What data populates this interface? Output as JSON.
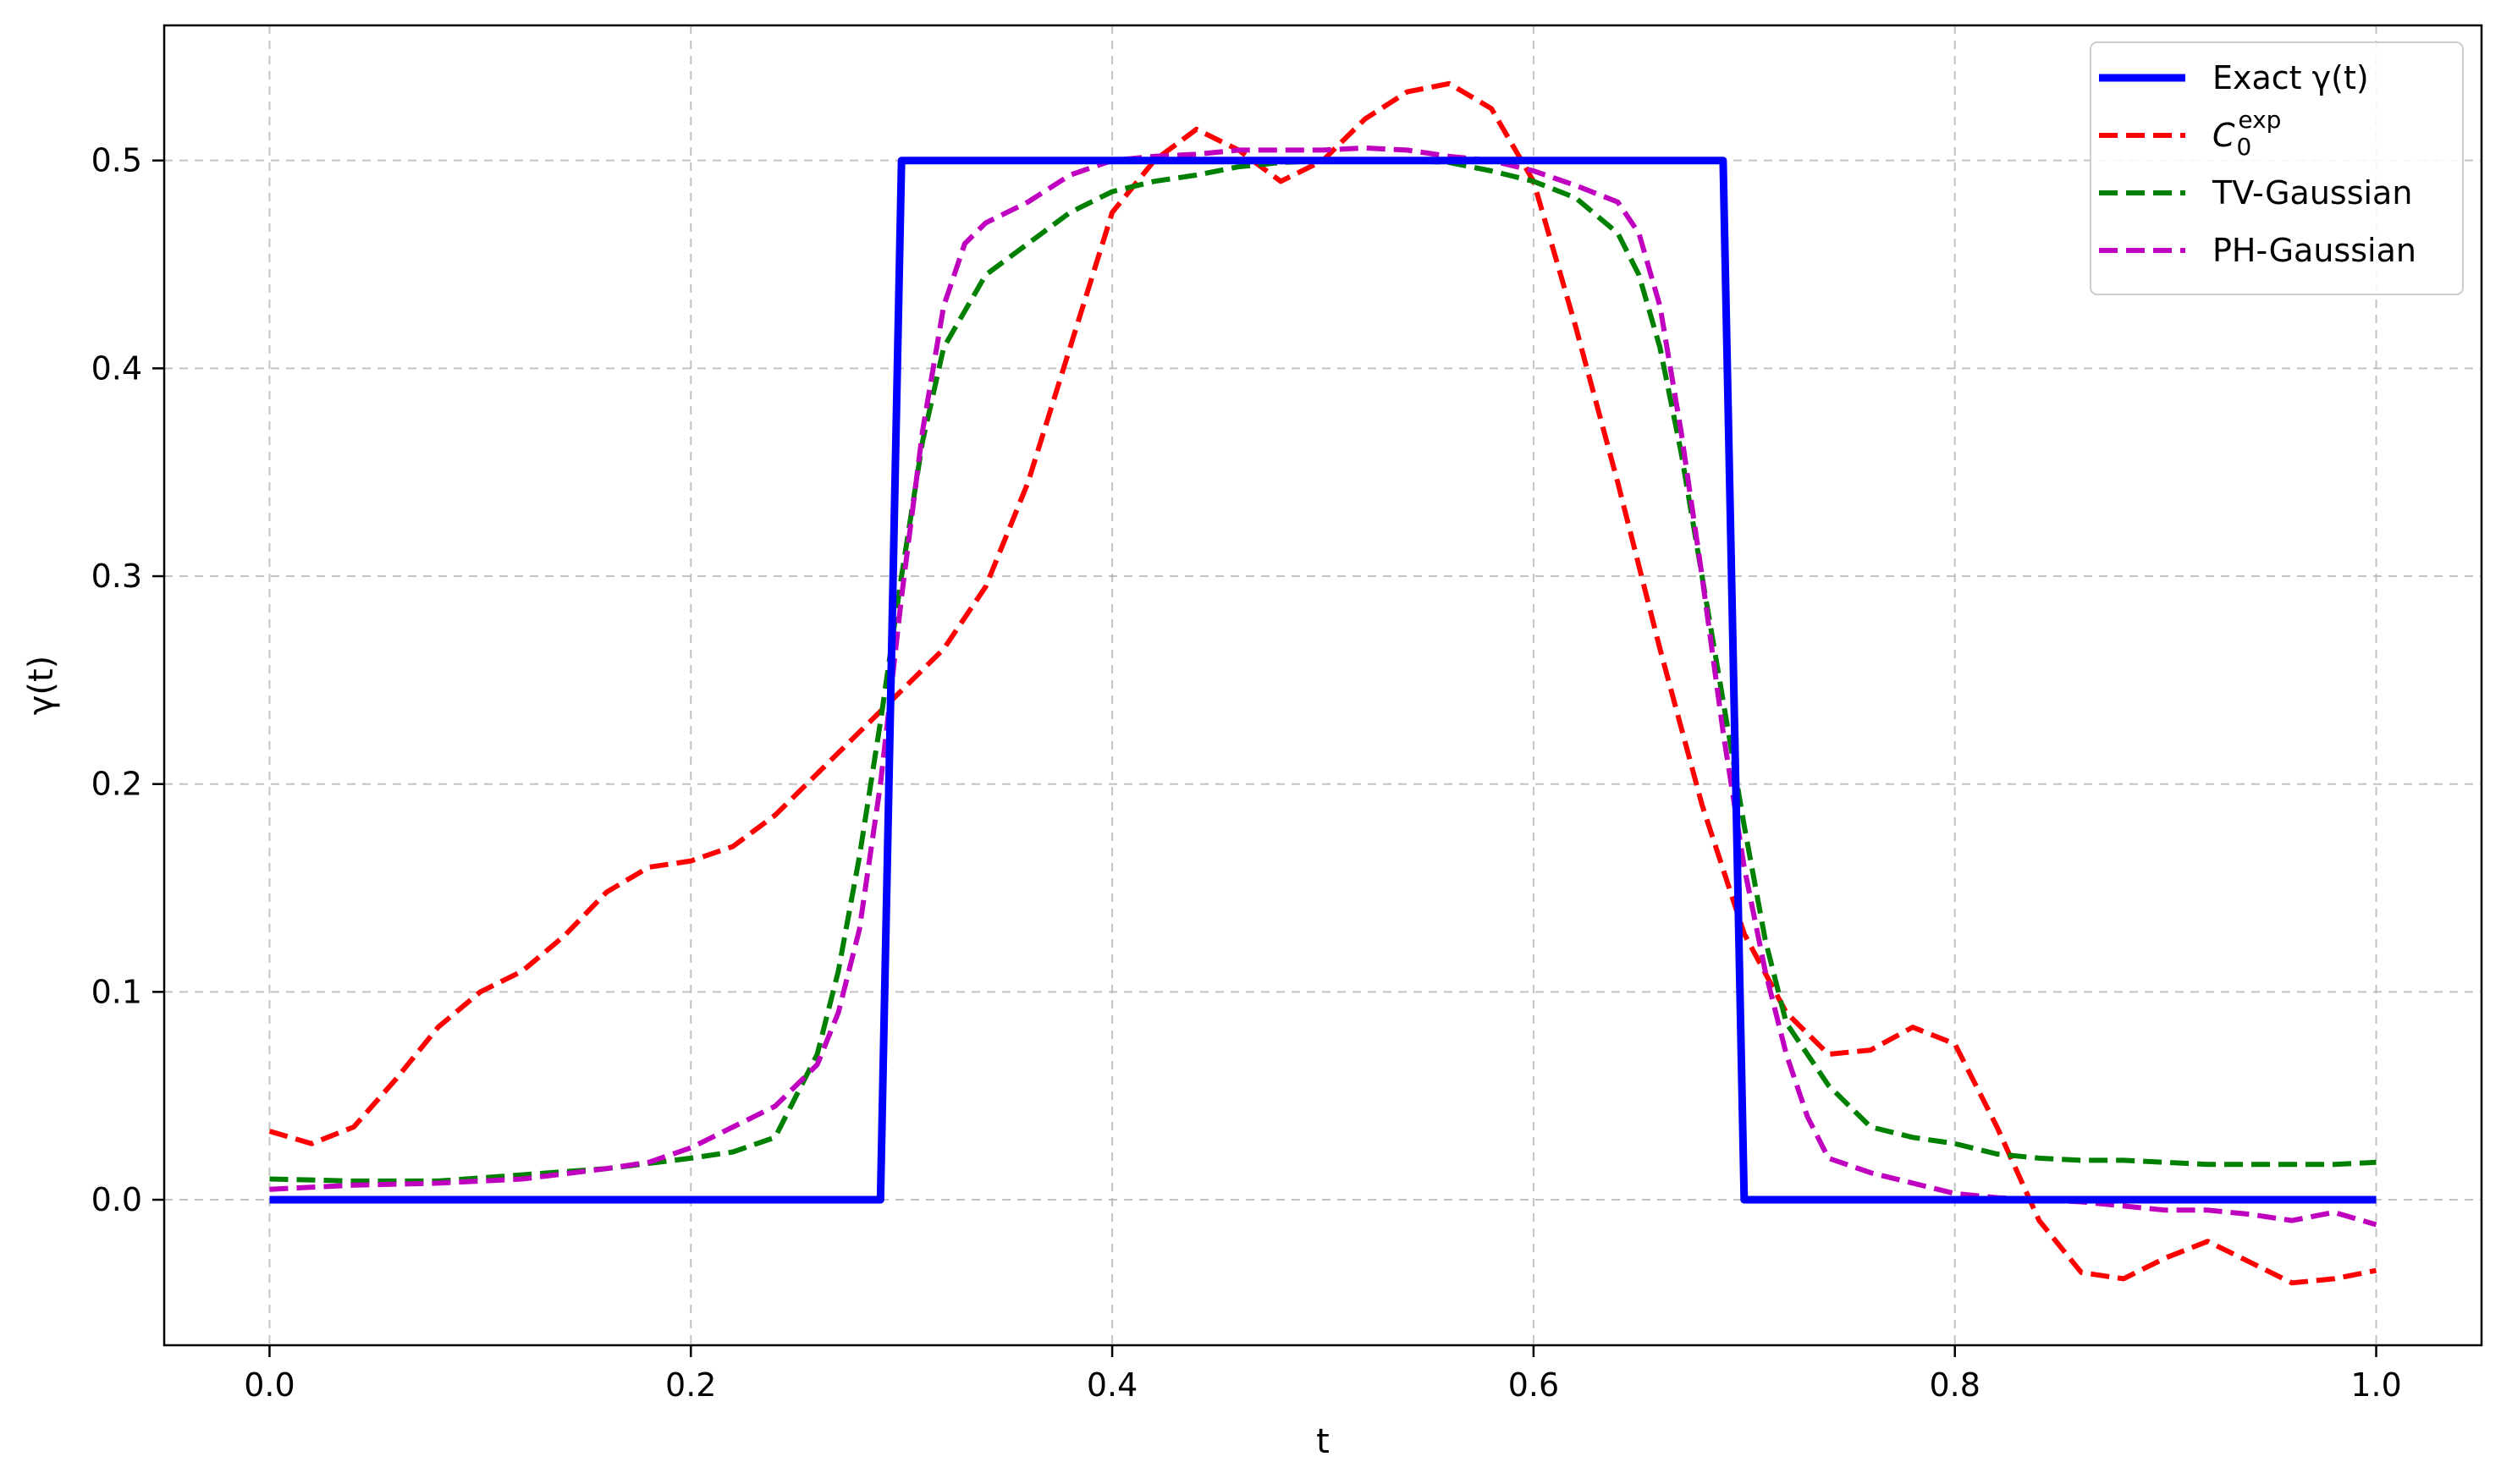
{
  "chart_data": {
    "type": "line",
    "title": "",
    "xlabel": "t",
    "ylabel": "γ(t)",
    "xlim": [
      -0.05,
      1.05
    ],
    "ylim": [
      -0.07,
      0.565
    ],
    "xticks": [
      0.0,
      0.2,
      0.4,
      0.6,
      0.8,
      1.0
    ],
    "xtick_labels": [
      "0.0",
      "0.2",
      "0.4",
      "0.6",
      "0.8",
      "1.0"
    ],
    "yticks": [
      0.0,
      0.1,
      0.2,
      0.3,
      0.4,
      0.5
    ],
    "ytick_labels": [
      "0.0",
      "0.1",
      "0.2",
      "0.3",
      "0.4",
      "0.5"
    ],
    "grid": true,
    "legend_position": "top-right",
    "series": [
      {
        "name": "Exact γ(t)",
        "color": "#0000ff",
        "style": "solid",
        "x": [
          0.0,
          0.29,
          0.3,
          0.69,
          0.7,
          1.0
        ],
        "y": [
          0.0,
          0.0,
          0.5,
          0.5,
          0.0,
          0.0
        ]
      },
      {
        "name": "C0exp",
        "legend_base": "C",
        "legend_sub": "0",
        "legend_sup": "exp",
        "color": "#ff0000",
        "style": "dashed",
        "x": [
          0.0,
          0.02,
          0.04,
          0.06,
          0.08,
          0.1,
          0.12,
          0.14,
          0.16,
          0.18,
          0.2,
          0.22,
          0.24,
          0.26,
          0.28,
          0.3,
          0.32,
          0.34,
          0.36,
          0.38,
          0.4,
          0.42,
          0.44,
          0.46,
          0.48,
          0.5,
          0.52,
          0.54,
          0.56,
          0.58,
          0.6,
          0.62,
          0.64,
          0.66,
          0.68,
          0.7,
          0.72,
          0.74,
          0.76,
          0.78,
          0.8,
          0.82,
          0.84,
          0.86,
          0.88,
          0.9,
          0.92,
          0.94,
          0.96,
          0.98,
          1.0
        ],
        "y": [
          0.033,
          0.027,
          0.035,
          0.058,
          0.083,
          0.1,
          0.11,
          0.127,
          0.148,
          0.16,
          0.163,
          0.17,
          0.185,
          0.205,
          0.225,
          0.245,
          0.265,
          0.295,
          0.345,
          0.41,
          0.475,
          0.5,
          0.515,
          0.505,
          0.49,
          0.5,
          0.52,
          0.533,
          0.537,
          0.525,
          0.49,
          0.42,
          0.345,
          0.265,
          0.19,
          0.128,
          0.09,
          0.07,
          0.072,
          0.083,
          0.075,
          0.035,
          -0.01,
          -0.035,
          -0.038,
          -0.028,
          -0.02,
          -0.03,
          -0.04,
          -0.038,
          -0.034
        ]
      },
      {
        "name": "TV-Gaussian",
        "color": "#008000",
        "style": "dashed",
        "x": [
          0.0,
          0.04,
          0.08,
          0.12,
          0.16,
          0.2,
          0.22,
          0.24,
          0.26,
          0.27,
          0.28,
          0.29,
          0.3,
          0.31,
          0.32,
          0.34,
          0.36,
          0.38,
          0.4,
          0.42,
          0.44,
          0.46,
          0.48,
          0.5,
          0.52,
          0.54,
          0.56,
          0.58,
          0.6,
          0.62,
          0.64,
          0.65,
          0.66,
          0.67,
          0.68,
          0.69,
          0.7,
          0.71,
          0.72,
          0.74,
          0.76,
          0.78,
          0.8,
          0.82,
          0.84,
          0.86,
          0.88,
          0.9,
          0.92,
          0.94,
          0.96,
          0.98,
          1.0
        ],
        "y": [
          0.01,
          0.009,
          0.009,
          0.012,
          0.015,
          0.02,
          0.023,
          0.03,
          0.07,
          0.11,
          0.165,
          0.23,
          0.3,
          0.365,
          0.41,
          0.445,
          0.46,
          0.475,
          0.485,
          0.49,
          0.493,
          0.497,
          0.499,
          0.5,
          0.5,
          0.5,
          0.499,
          0.495,
          0.49,
          0.482,
          0.465,
          0.445,
          0.41,
          0.36,
          0.3,
          0.24,
          0.18,
          0.125,
          0.085,
          0.055,
          0.035,
          0.03,
          0.027,
          0.022,
          0.02,
          0.019,
          0.019,
          0.018,
          0.017,
          0.017,
          0.017,
          0.017,
          0.018
        ]
      },
      {
        "name": "PH-Gaussian",
        "color": "#bf00bf",
        "style": "dashed",
        "x": [
          0.0,
          0.04,
          0.08,
          0.12,
          0.16,
          0.18,
          0.2,
          0.22,
          0.24,
          0.26,
          0.27,
          0.28,
          0.29,
          0.3,
          0.31,
          0.32,
          0.33,
          0.34,
          0.36,
          0.38,
          0.4,
          0.42,
          0.44,
          0.46,
          0.48,
          0.5,
          0.52,
          0.54,
          0.56,
          0.58,
          0.6,
          0.62,
          0.64,
          0.65,
          0.66,
          0.67,
          0.68,
          0.69,
          0.7,
          0.71,
          0.72,
          0.73,
          0.74,
          0.76,
          0.78,
          0.8,
          0.82,
          0.84,
          0.86,
          0.88,
          0.9,
          0.92,
          0.94,
          0.96,
          0.98,
          1.0
        ],
        "y": [
          0.005,
          0.007,
          0.008,
          0.01,
          0.015,
          0.018,
          0.025,
          0.035,
          0.045,
          0.065,
          0.09,
          0.13,
          0.2,
          0.29,
          0.37,
          0.43,
          0.46,
          0.47,
          0.48,
          0.493,
          0.5,
          0.502,
          0.503,
          0.505,
          0.505,
          0.505,
          0.506,
          0.505,
          0.502,
          0.5,
          0.495,
          0.488,
          0.48,
          0.465,
          0.43,
          0.37,
          0.3,
          0.225,
          0.16,
          0.11,
          0.07,
          0.04,
          0.02,
          0.013,
          0.008,
          0.003,
          0.001,
          0.0,
          -0.001,
          -0.003,
          -0.005,
          -0.005,
          -0.007,
          -0.01,
          -0.006,
          -0.012
        ]
      }
    ]
  }
}
